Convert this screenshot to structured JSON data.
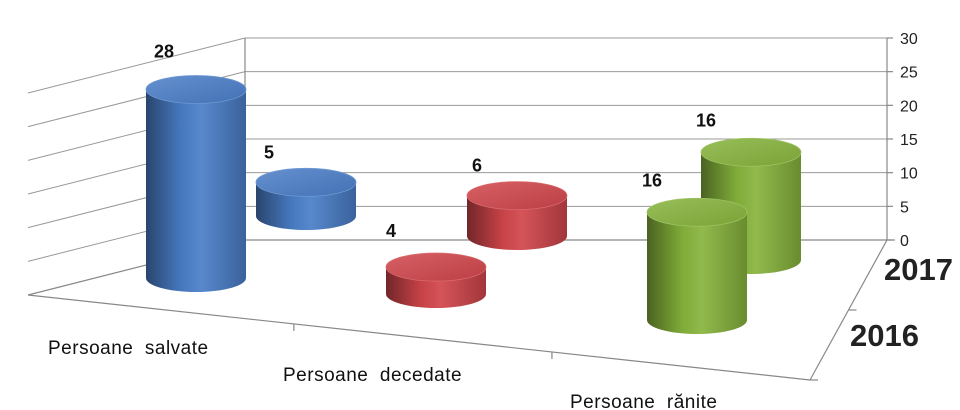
{
  "chart_data": {
    "type": "bar",
    "shape": "cylinder-3d",
    "categories": [
      "Persoane  salvate",
      "Persoane  decedate",
      "Persoane  rănite"
    ],
    "series": [
      {
        "name": "2016",
        "values": [
          28,
          4,
          16
        ]
      },
      {
        "name": "2017",
        "values": [
          5,
          6,
          16
        ]
      }
    ],
    "category_colors": [
      "#4A7EC8",
      "#D0454A",
      "#86B43C"
    ],
    "ylim": [
      0,
      30
    ],
    "yticks": [
      0,
      5,
      10,
      15,
      20,
      25,
      30
    ],
    "grid": true,
    "xlabel": "",
    "ylabel": ""
  }
}
